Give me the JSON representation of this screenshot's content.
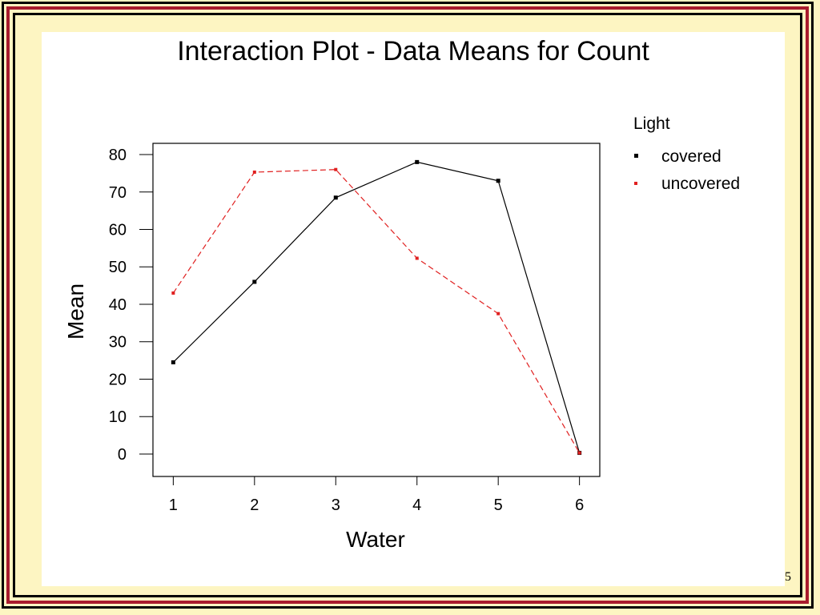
{
  "slide": {
    "page_number": "5",
    "frame_colors": {
      "background": "#fdf5c2",
      "accent": "#a81c2e",
      "border": "#000000",
      "panel": "#ffffff"
    }
  },
  "chart_data": {
    "type": "line",
    "title": "Interaction Plot - Data Means for Count",
    "xlabel": "Water",
    "ylabel": "Mean",
    "x": [
      1,
      2,
      3,
      4,
      5,
      6
    ],
    "xticks": [
      "1",
      "2",
      "3",
      "4",
      "5",
      "6"
    ],
    "yticks": [
      "0",
      "10",
      "20",
      "30",
      "40",
      "50",
      "60",
      "70",
      "80"
    ],
    "ylim": [
      -6,
      83
    ],
    "xlim": [
      0.75,
      6.25
    ],
    "grid": false,
    "legend": {
      "title": "Light",
      "position": "right",
      "entries": [
        "covered",
        "uncovered"
      ]
    },
    "series": [
      {
        "name": "covered",
        "color": "#000000",
        "dash": "solid",
        "values": [
          24.5,
          46,
          68.5,
          78,
          73,
          0.3
        ]
      },
      {
        "name": "uncovered",
        "color": "#e02020",
        "dash": "dashed",
        "values": [
          43,
          75.3,
          76,
          52.3,
          37.5,
          0.3
        ]
      }
    ]
  }
}
